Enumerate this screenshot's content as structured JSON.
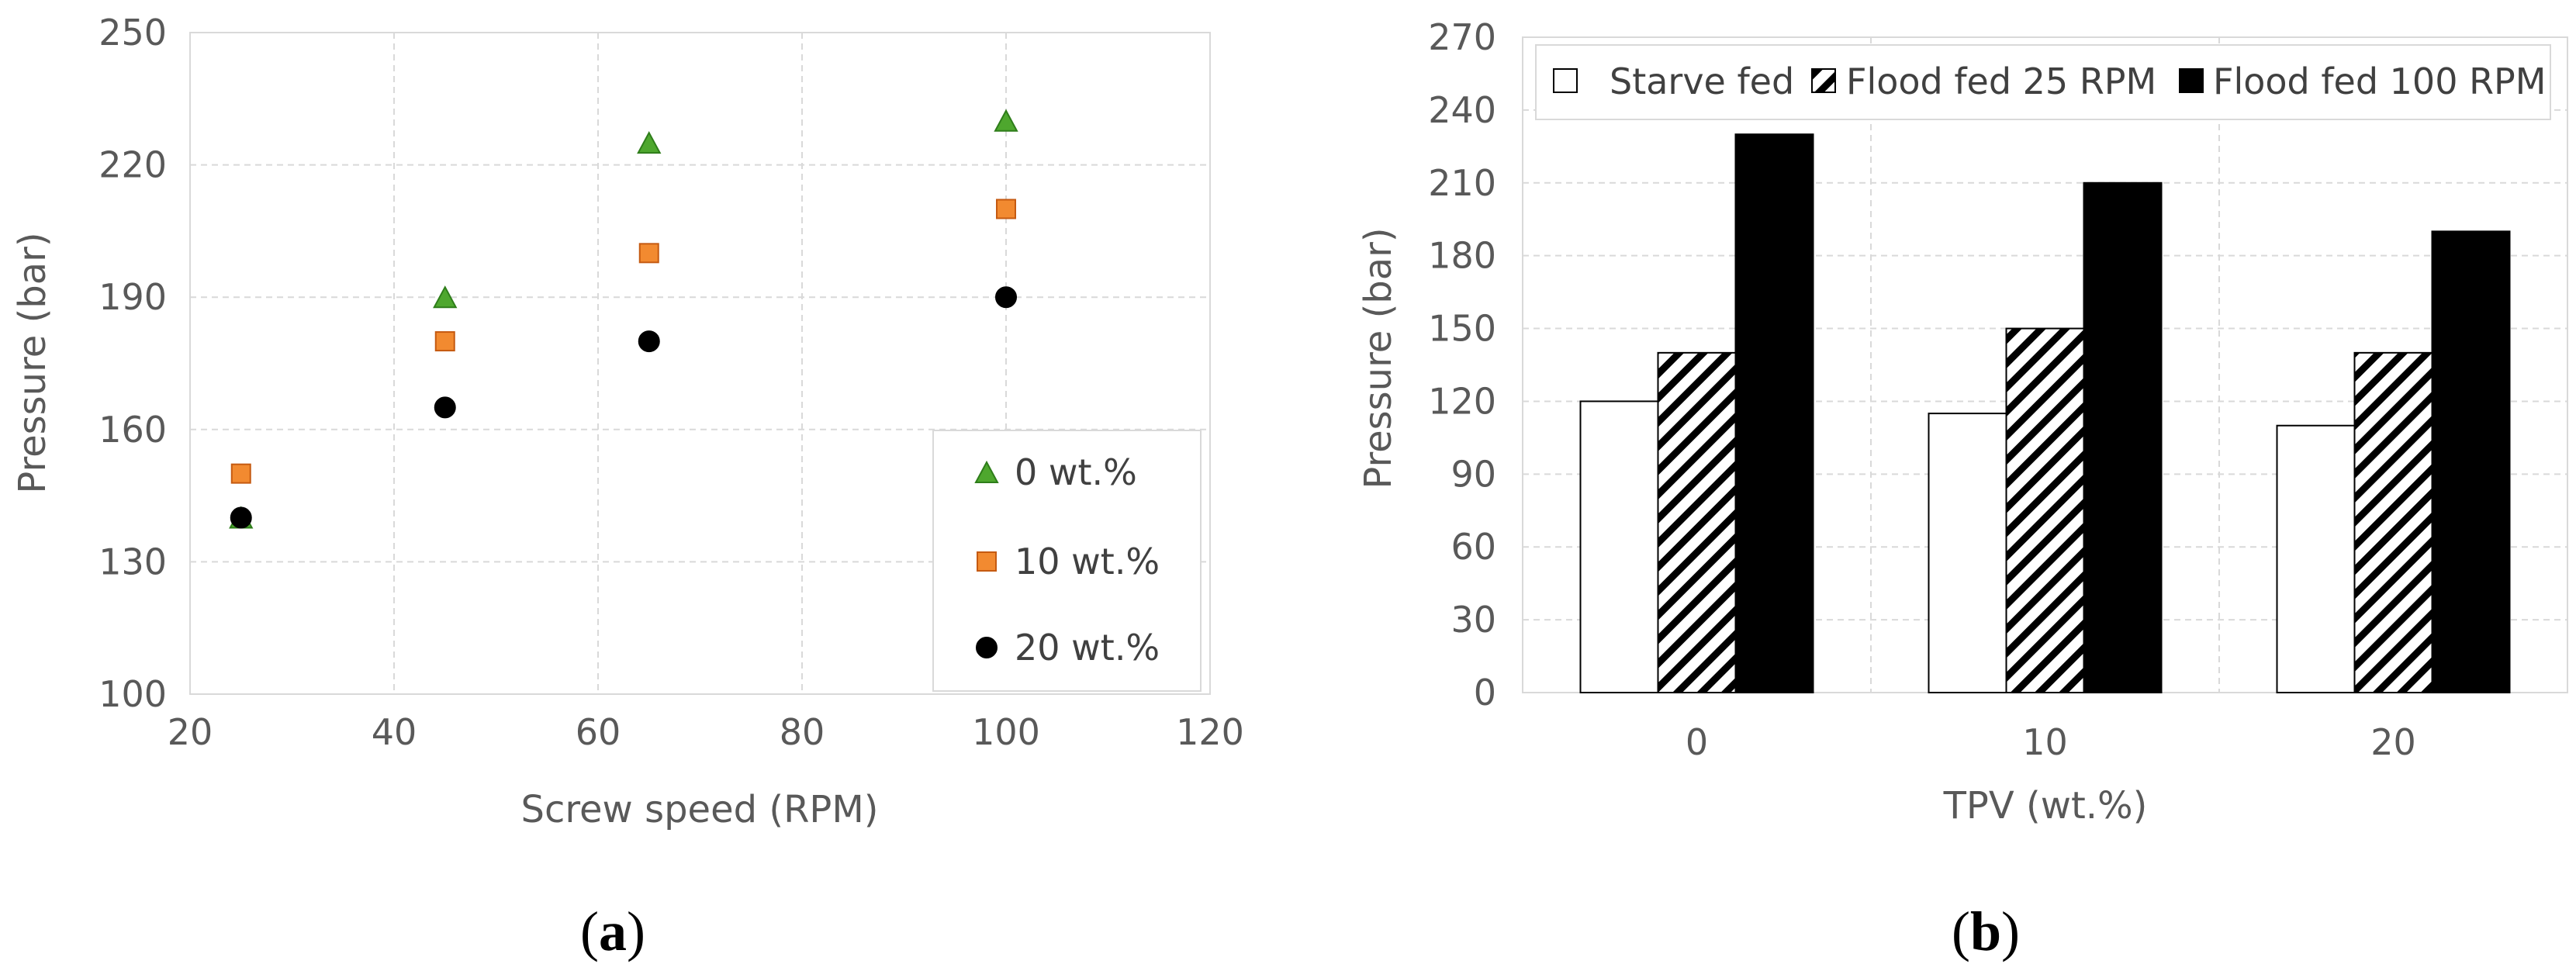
{
  "chart_data": [
    {
      "type": "scatter",
      "panel_label": "(a)",
      "panel_letter": "a",
      "xlabel": "Screw speed (RPM)",
      "ylabel": "Pressure (bar)",
      "xlim": [
        20,
        120
      ],
      "ylim": [
        100,
        250
      ],
      "xticks": [
        20,
        40,
        60,
        80,
        100,
        120
      ],
      "yticks": [
        100,
        130,
        160,
        190,
        220,
        250
      ],
      "grid": true,
      "legend_position": "bottom-right",
      "series": [
        {
          "name": "0 wt.%",
          "marker": "triangle",
          "color": "#4ea72e",
          "edge": "#2e7d1a",
          "x": [
            25,
            45,
            65,
            100
          ],
          "y": [
            140,
            190,
            225,
            230
          ]
        },
        {
          "name": "10 wt.%",
          "marker": "square",
          "color": "#f28a30",
          "edge": "#c55a11",
          "x": [
            25,
            45,
            65,
            100
          ],
          "y": [
            150,
            180,
            200,
            210
          ]
        },
        {
          "name": "20 wt.%",
          "marker": "circle",
          "color": "#000000",
          "edge": "#000000",
          "x": [
            25,
            45,
            65,
            100
          ],
          "y": [
            140,
            165,
            180,
            190
          ]
        }
      ]
    },
    {
      "type": "bar",
      "panel_label": "(b)",
      "panel_letter": "b",
      "xlabel": "TPV  (wt.%)",
      "ylabel": "Pressure (bar)",
      "categories": [
        "0",
        "10",
        "20"
      ],
      "ylim": [
        0,
        270
      ],
      "yticks": [
        0,
        30,
        60,
        90,
        120,
        150,
        180,
        210,
        240,
        270
      ],
      "grid": true,
      "legend_position": "top",
      "series": [
        {
          "name": "Starve fed",
          "fill": "white",
          "values": [
            120,
            115,
            110
          ]
        },
        {
          "name": "Flood fed 25 RPM",
          "fill": "hatch",
          "values": [
            140,
            150,
            140
          ]
        },
        {
          "name": "Flood fed 100 RPM",
          "fill": "black",
          "values": [
            230,
            210,
            190
          ]
        }
      ]
    }
  ]
}
